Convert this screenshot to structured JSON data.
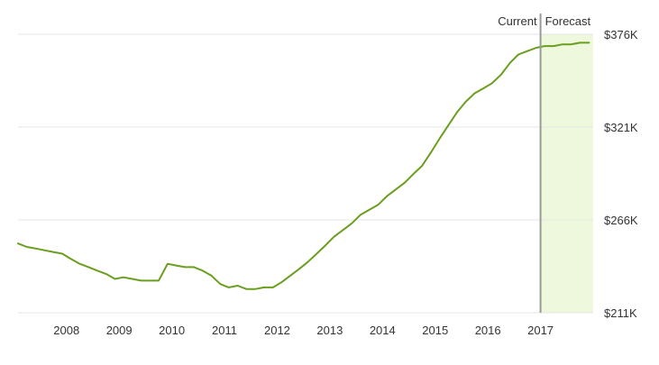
{
  "chart_data": {
    "type": "line",
    "title": "",
    "xlabel": "",
    "ylabel": "",
    "x_tick_labels": [
      "2008",
      "2009",
      "2010",
      "2011",
      "2012",
      "2013",
      "2014",
      "2015",
      "2016",
      "2017"
    ],
    "y_tick_labels": [
      "$376K",
      "$321K",
      "$266K",
      "$211K"
    ],
    "y_ticks": [
      376000,
      321000,
      266000,
      211000
    ],
    "xlim": [
      2007.08,
      2018.0
    ],
    "ylim": [
      211000,
      376000
    ],
    "grid": "horizontal",
    "y_axis_position": "right",
    "forecast_start": 2017.0,
    "marker_left_label": "Current",
    "marker_right_label": "Forecast",
    "colors": {
      "line": "#6a9e1f",
      "forecast_fill": "#eef8dc",
      "marker": "#999999",
      "grid": "#e6e6e6"
    },
    "series": [
      {
        "x": [
          2007.08,
          2007.25,
          2007.42,
          2007.58,
          2007.75,
          2007.92,
          2008.08,
          2008.25,
          2008.42,
          2008.58,
          2008.75,
          2008.92,
          2009.08,
          2009.25,
          2009.42,
          2009.58,
          2009.75,
          2009.92,
          2010.08,
          2010.25,
          2010.42,
          2010.58,
          2010.75,
          2010.92,
          2011.08,
          2011.25,
          2011.42,
          2011.58,
          2011.75,
          2011.92,
          2012.08,
          2012.25,
          2012.42,
          2012.58,
          2012.75,
          2012.92,
          2013.08,
          2013.25,
          2013.42,
          2013.58,
          2013.75,
          2013.92,
          2014.08,
          2014.25,
          2014.42,
          2014.58,
          2014.75,
          2014.92,
          2015.08,
          2015.25,
          2015.42,
          2015.58,
          2015.75,
          2015.92,
          2016.08,
          2016.25,
          2016.42,
          2016.58,
          2016.75,
          2016.92,
          2017.08,
          2017.25,
          2017.42,
          2017.58,
          2017.75,
          2017.92
        ],
        "values": [
          252000,
          250000,
          249000,
          248000,
          247000,
          246000,
          243000,
          240000,
          238000,
          236000,
          234000,
          231000,
          232000,
          231000,
          230000,
          230000,
          230000,
          240000,
          239000,
          238000,
          238000,
          236000,
          233000,
          228000,
          226000,
          227000,
          225000,
          225000,
          226000,
          226000,
          229000,
          233000,
          237000,
          241000,
          246000,
          251000,
          256000,
          260000,
          264000,
          269000,
          272000,
          275000,
          280000,
          284000,
          288000,
          293000,
          298000,
          306000,
          314000,
          322000,
          330000,
          336000,
          341000,
          344000,
          347000,
          352000,
          359000,
          364000,
          366000,
          368000,
          369000,
          369000,
          370000,
          370000,
          371000,
          371000
        ]
      }
    ]
  }
}
